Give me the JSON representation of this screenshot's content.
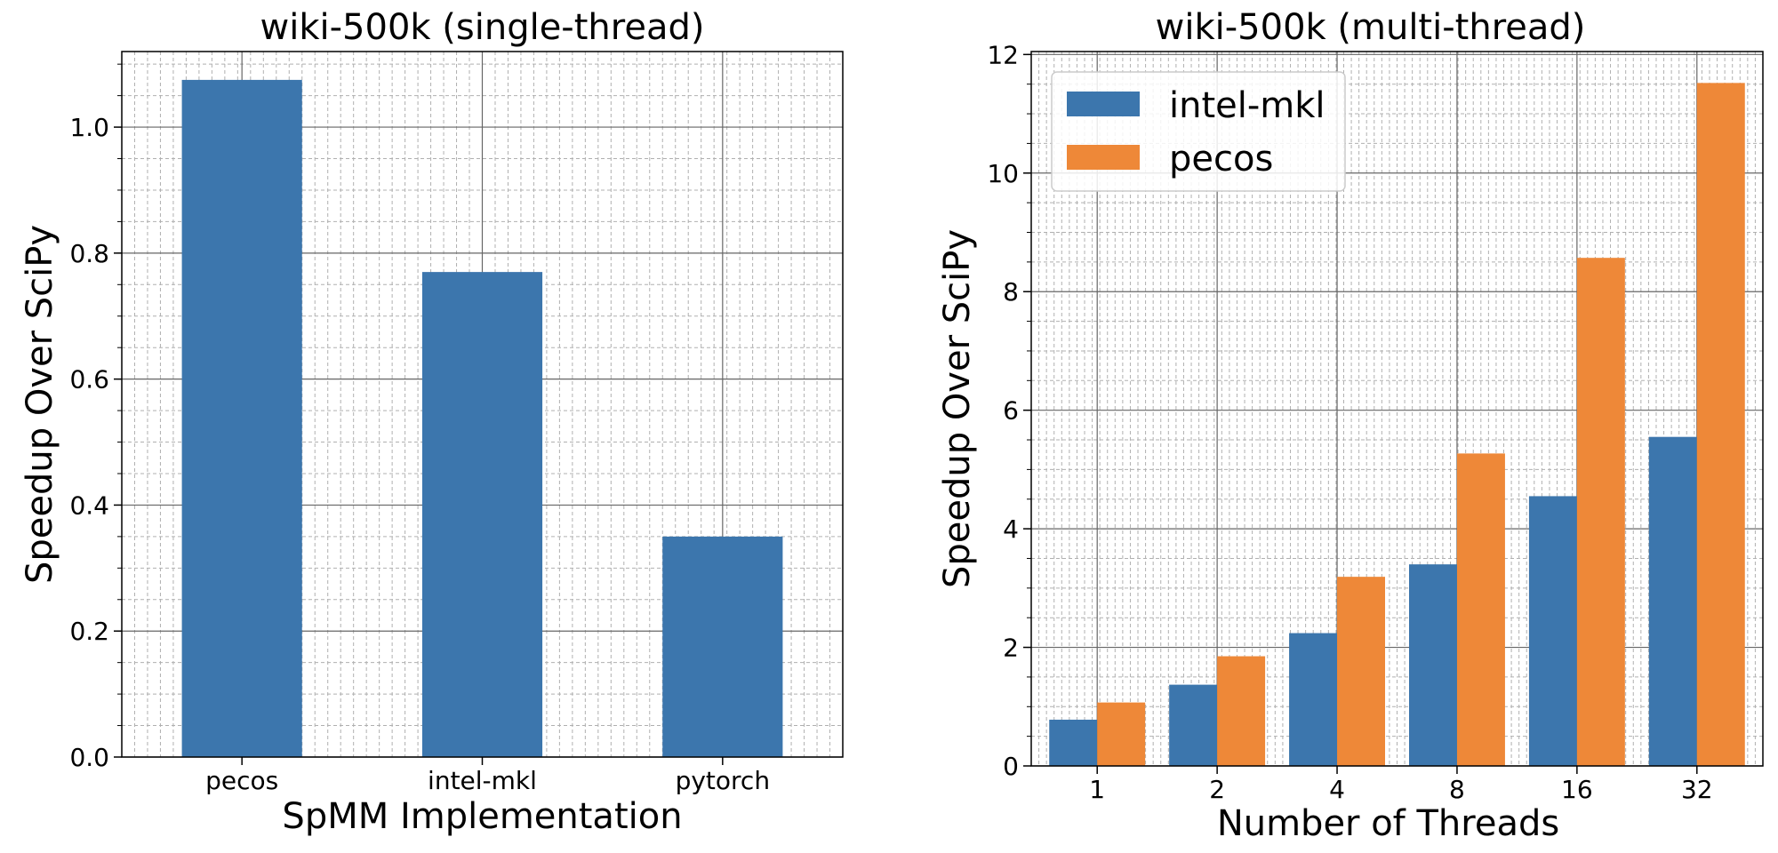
{
  "colors": {
    "intel_mkl": "#3c76ad",
    "pecos": "#ee8838",
    "single_bar": "#3c76ad",
    "grid_major": "#666666",
    "grid_minor": "#b0b0b0"
  },
  "chart_data": [
    {
      "type": "bar",
      "title": "wiki-500k (single-thread)",
      "xlabel": "SpMM Implementation",
      "ylabel": "Speedup Over SciPy",
      "categories": [
        "pecos",
        "intel-mkl",
        "pytorch"
      ],
      "values": [
        1.075,
        0.77,
        0.35
      ],
      "ylim": [
        0,
        1.12
      ],
      "yticks": [
        0.0,
        0.2,
        0.4,
        0.6,
        0.8,
        1.0
      ],
      "ytick_labels": [
        "0.0",
        "0.2",
        "0.4",
        "0.6",
        "0.8",
        "1.0"
      ],
      "grid": "major and minor, dashed minor",
      "legend": "none"
    },
    {
      "type": "bar",
      "title": "wiki-500k (multi-thread)",
      "xlabel": "Number of Threads",
      "ylabel": "Speedup Over SciPy",
      "categories": [
        "1",
        "2",
        "4",
        "8",
        "16",
        "32"
      ],
      "series": [
        {
          "name": "intel-mkl",
          "values": [
            0.78,
            1.37,
            2.24,
            3.4,
            4.55,
            5.55
          ]
        },
        {
          "name": "pecos",
          "values": [
            1.07,
            1.85,
            3.19,
            5.27,
            8.57,
            11.52
          ]
        }
      ],
      "ylim": [
        0,
        12.05
      ],
      "yticks": [
        0,
        2,
        4,
        6,
        8,
        10,
        12
      ],
      "ytick_labels": [
        "0",
        "2",
        "4",
        "6",
        "8",
        "10",
        "12"
      ],
      "grid": "major and minor, dashed minor",
      "legend": "top-left"
    }
  ]
}
